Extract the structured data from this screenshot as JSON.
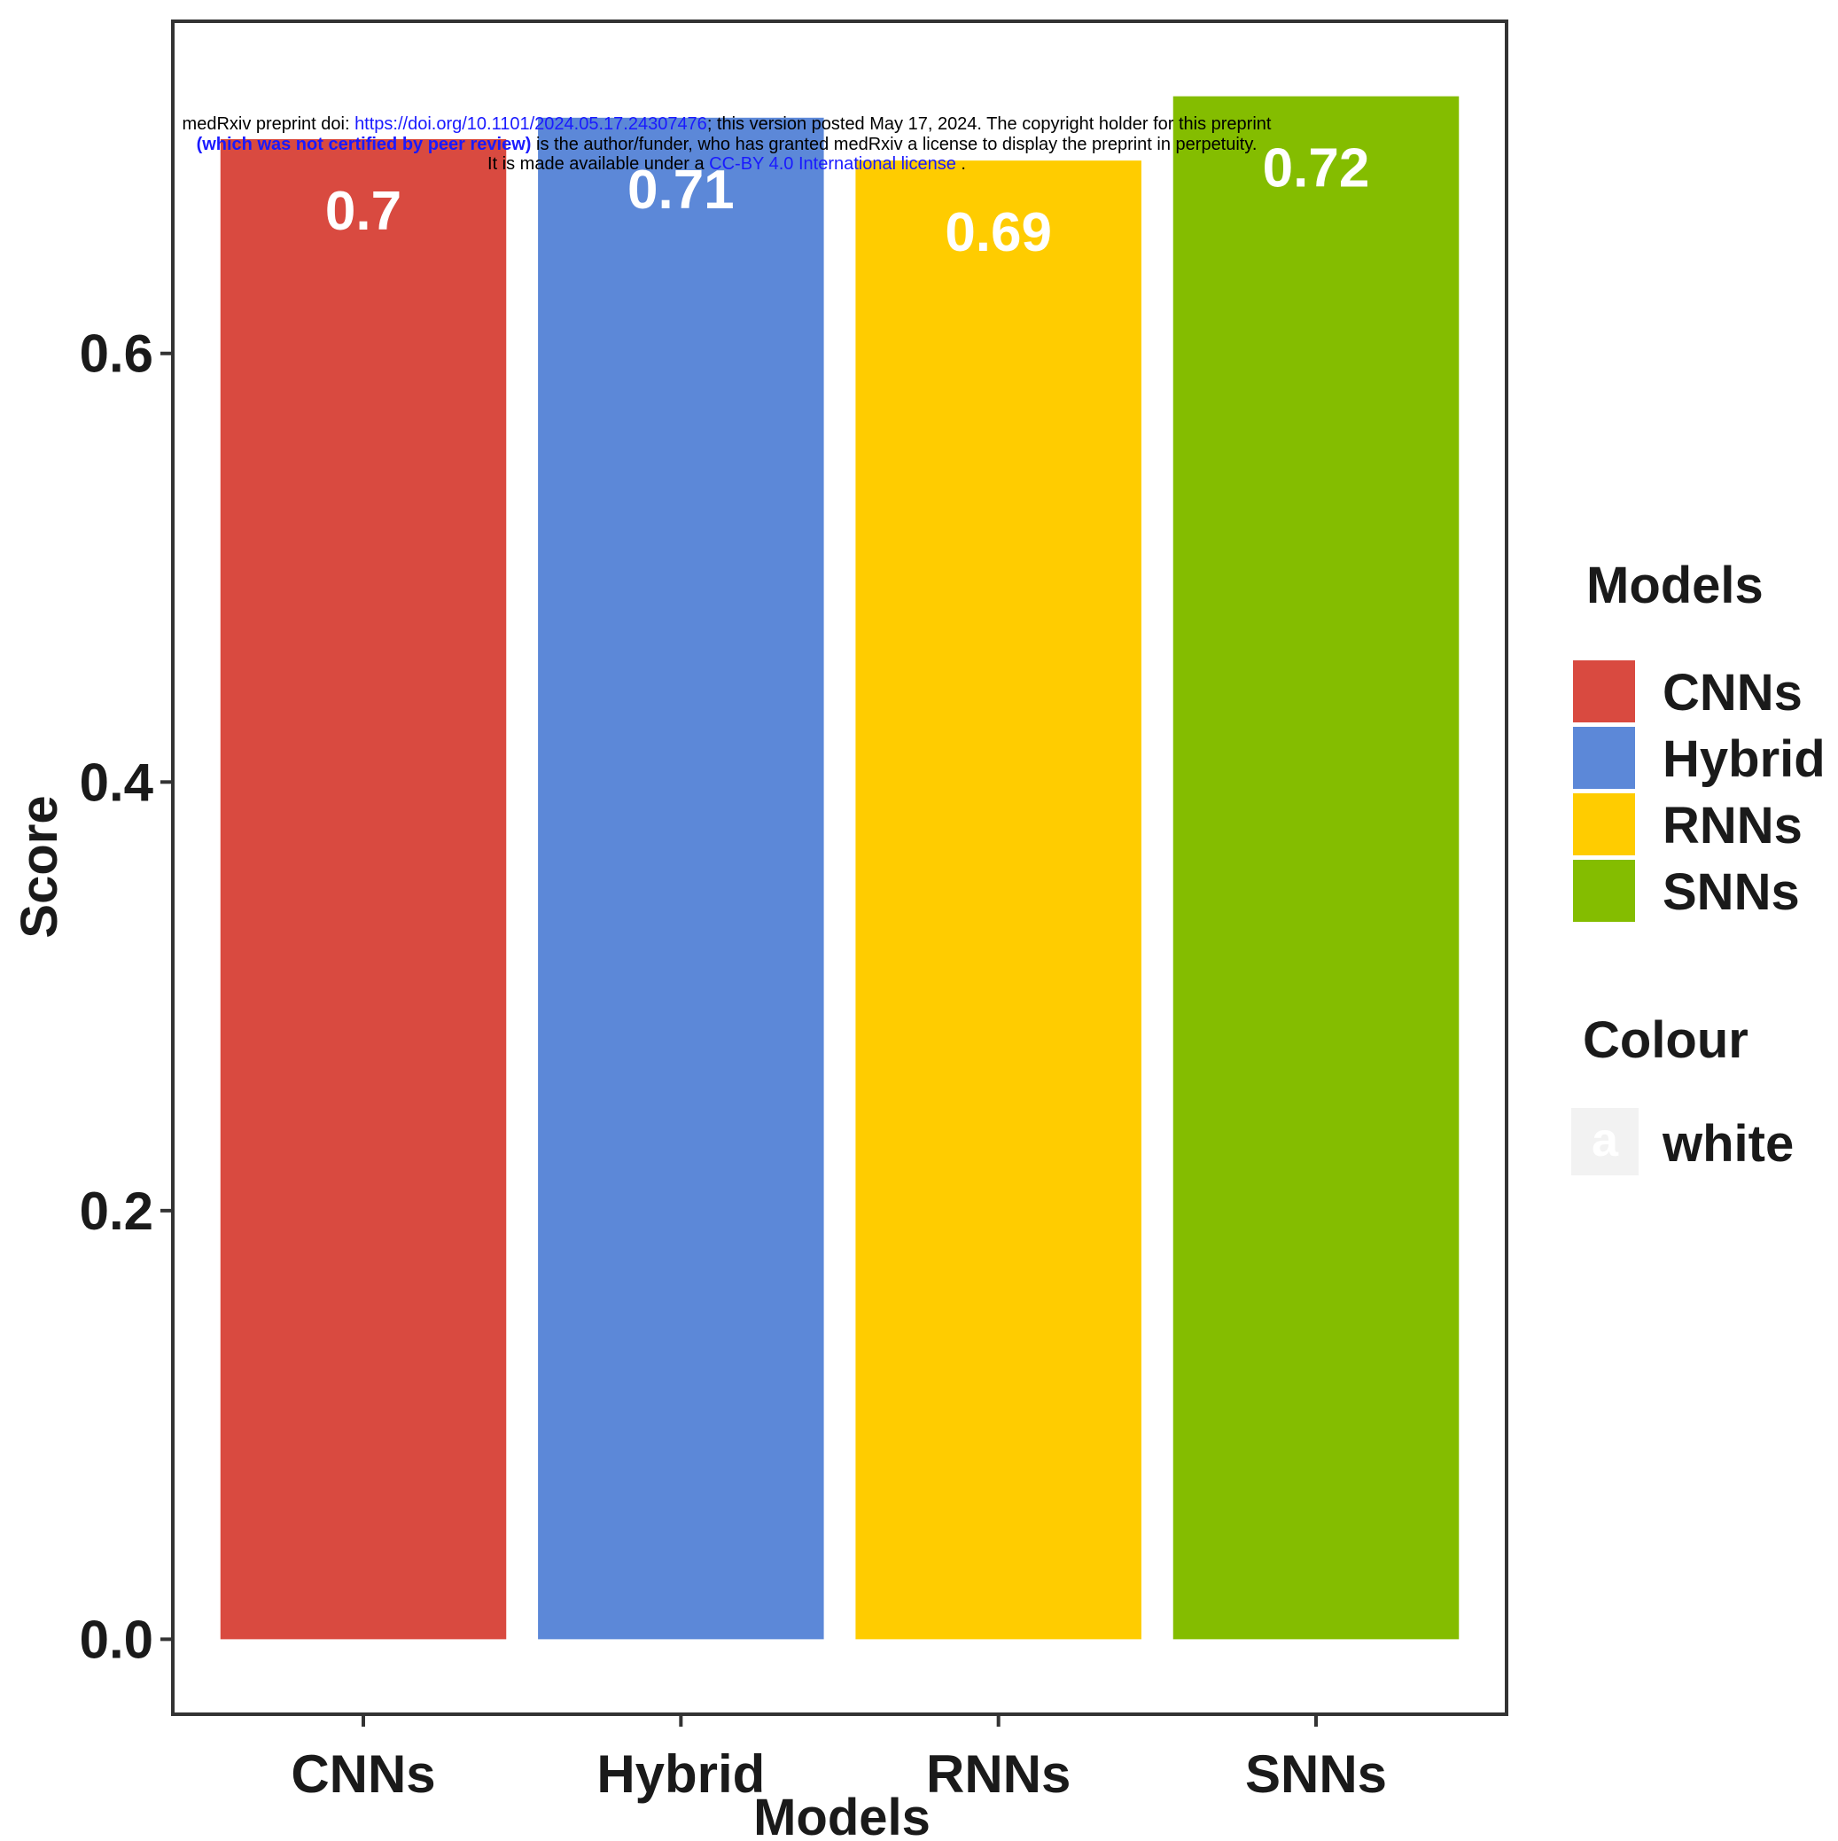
{
  "chart_data": {
    "type": "bar",
    "categories": [
      "CNNs",
      "Hybrid",
      "RNNs",
      "SNNs"
    ],
    "values": [
      0.7,
      0.71,
      0.69,
      0.72
    ],
    "value_labels": [
      "0.7",
      "0.71",
      "0.69",
      "0.72"
    ],
    "colors": [
      "#d94a40",
      "#5c88d8",
      "#ffcc00",
      "#84bd00"
    ],
    "xlabel": "Models",
    "ylabel": "Score",
    "yticks": [
      "0.0",
      "0.2",
      "0.4",
      "0.6"
    ],
    "ytick_values": [
      0.0,
      0.2,
      0.4,
      0.6
    ],
    "ylim": [
      -0.035,
      0.755
    ],
    "grid": false,
    "legend_placement": "right",
    "legend": {
      "title": "Models",
      "entries": [
        "CNNs",
        "Hybrid",
        "RNNs",
        "SNNs"
      ]
    },
    "colour_legend": {
      "title": "Colour",
      "key_glyph": "a",
      "entry": "white"
    }
  },
  "banner": {
    "line1_prefix": "medRxiv preprint doi: ",
    "line1_link": "https://doi.org/10.1101/2024.05.17.24307476",
    "line1_suffix": "; this version posted May 17, 2024. The copyright holder for this preprint",
    "line2_bold": "(which was not certified by peer review)",
    "line2_suffix": " is the author/funder, who has granted medRxiv a license to display the preprint in perpetuity.",
    "line3_prefix": "It is made available under a ",
    "line3_link": "CC-BY 4.0 International license",
    "line3_suffix": " ."
  }
}
